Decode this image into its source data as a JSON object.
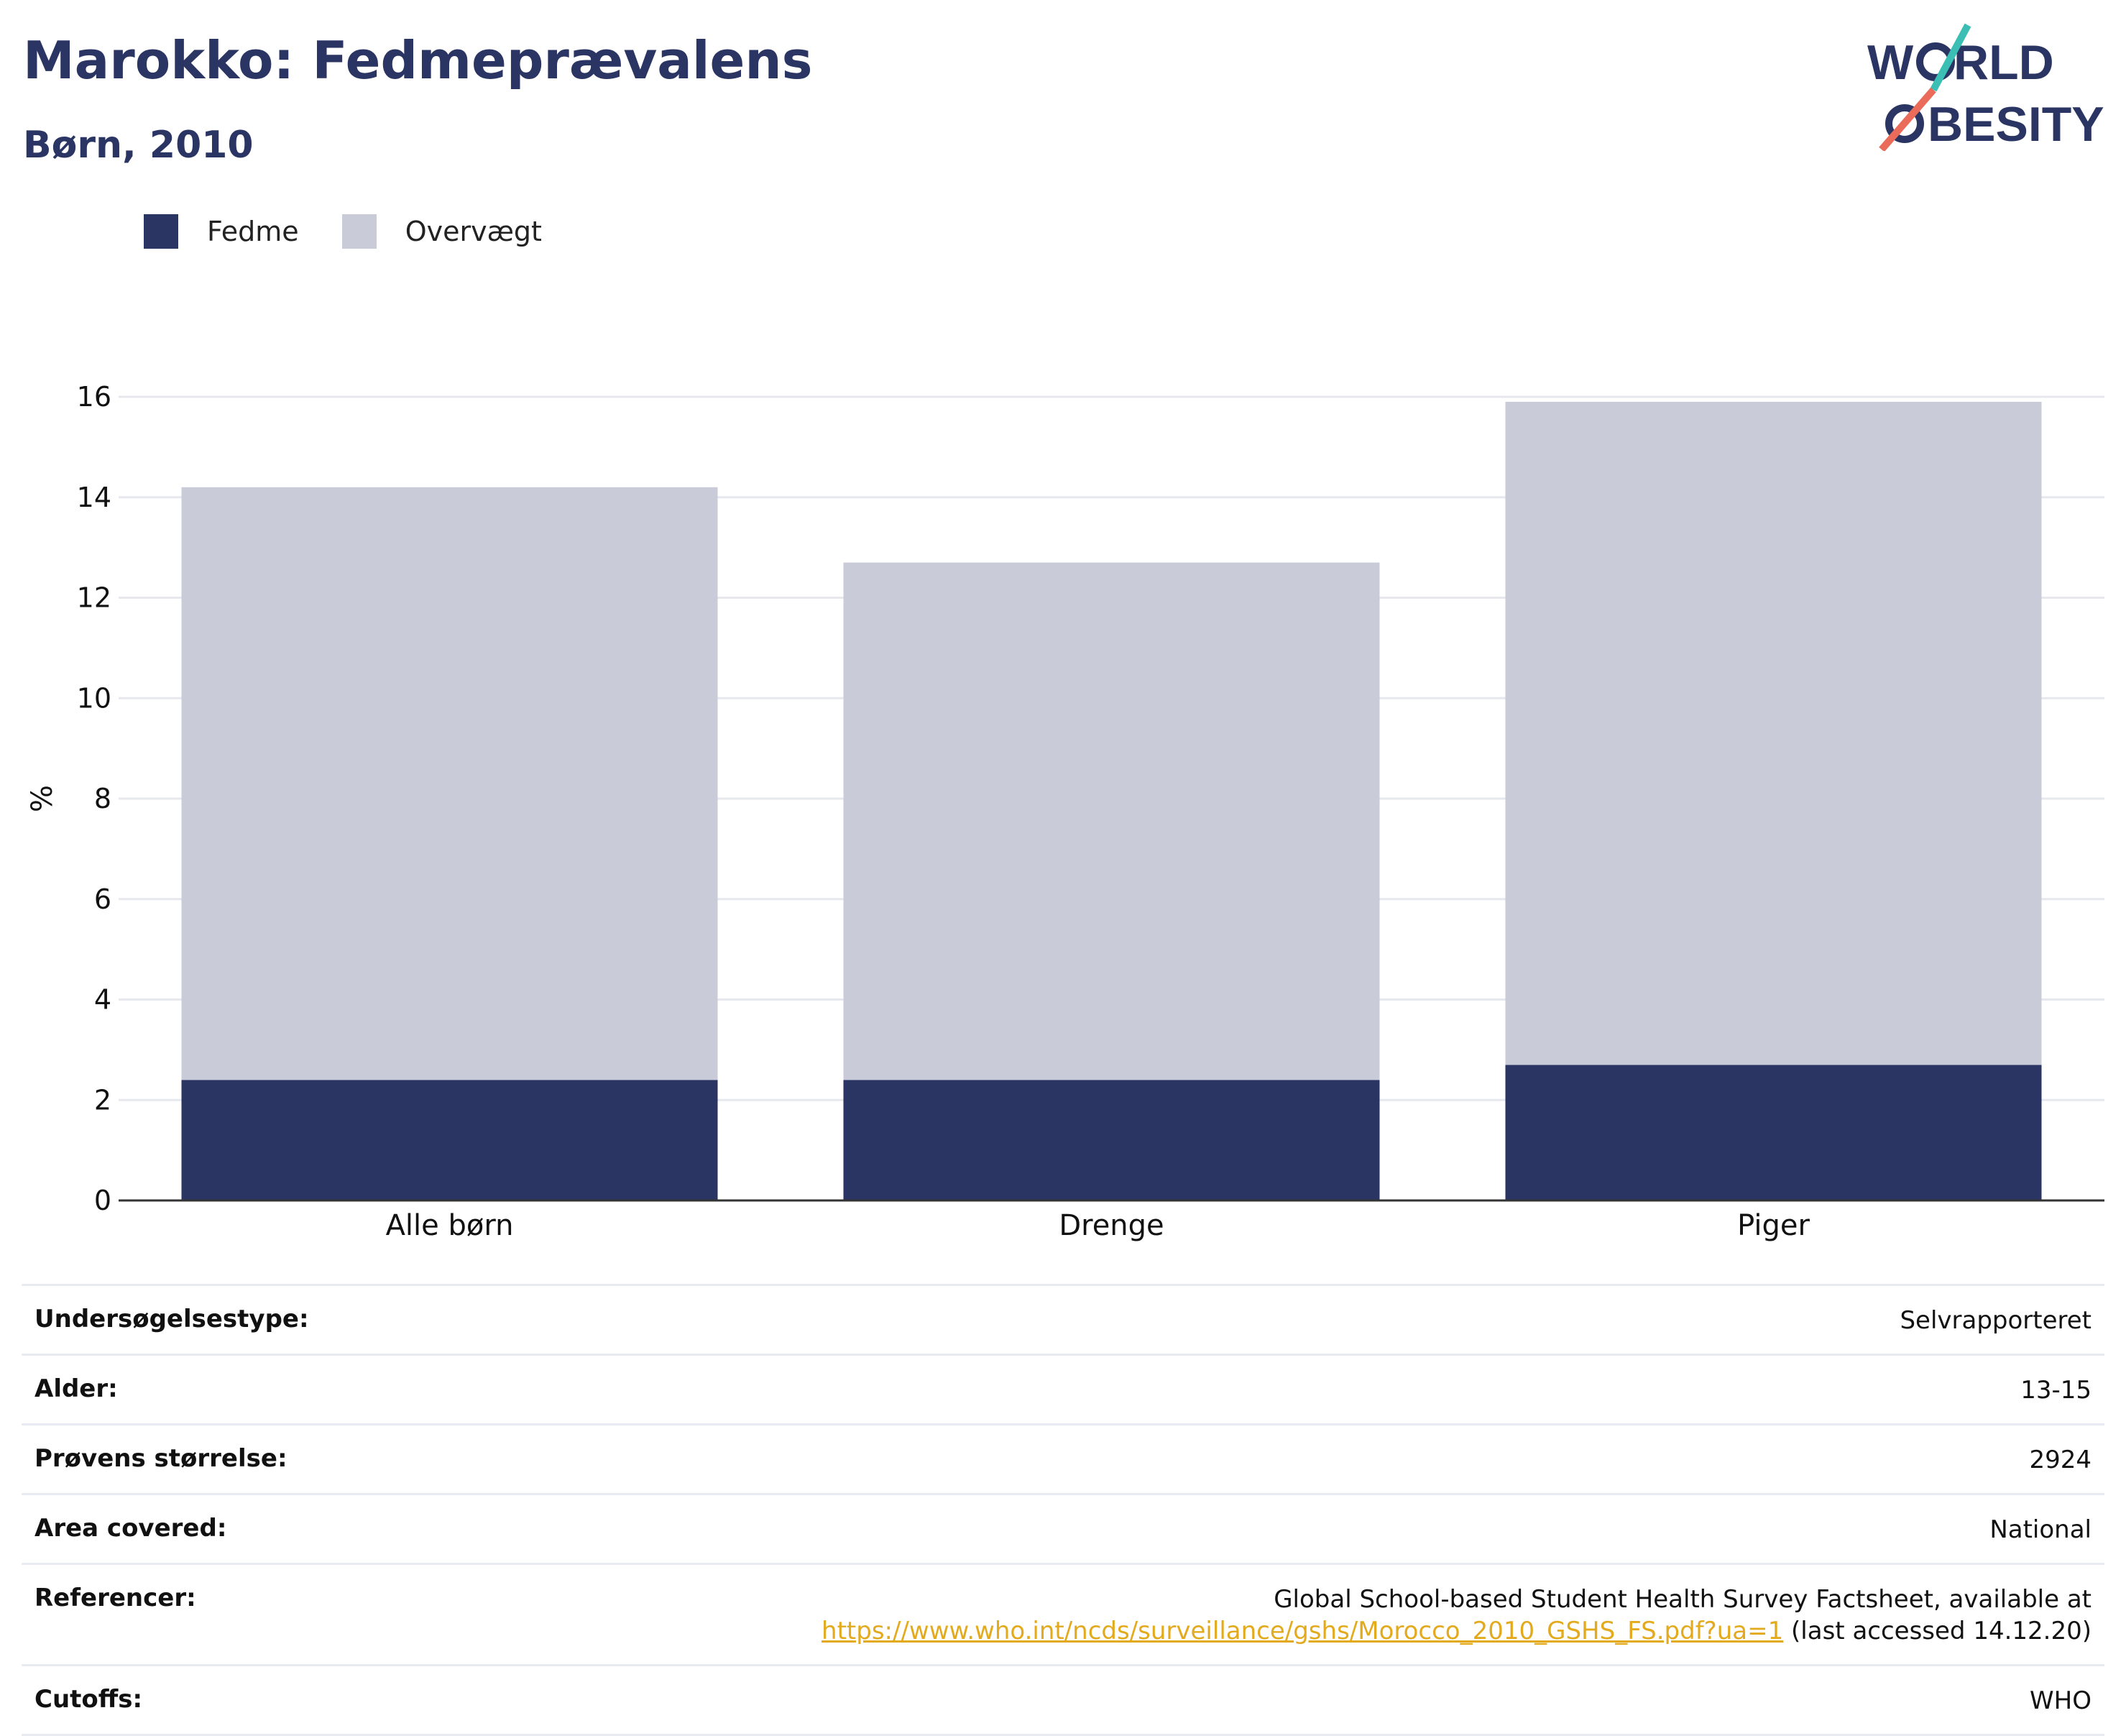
{
  "header": {
    "title": "Marokko: Fedmeprævalens",
    "subtitle": "Børn, 2010"
  },
  "logo": {
    "line1": "W RLD",
    "line2": "BESITY",
    "colors": {
      "navy": "#2b3564",
      "teal": "#3bbfb5",
      "coral": "#ea6b5a"
    }
  },
  "legend": {
    "items": [
      {
        "label": "Fedme",
        "color": "#2b3564"
      },
      {
        "label": "Overvægt",
        "color": "#c9ccd8"
      }
    ]
  },
  "chart_data": {
    "type": "bar",
    "stacked": true,
    "categories": [
      "Alle børn",
      "Drenge",
      "Piger"
    ],
    "series": [
      {
        "name": "Fedme",
        "values": [
          2.4,
          2.4,
          2.7
        ],
        "color": "#2b3564"
      },
      {
        "name": "Overvægt",
        "values": [
          11.8,
          10.3,
          13.2
        ],
        "color": "#c9ccd8"
      }
    ],
    "ylabel": "%",
    "xlabel": "",
    "ylim": [
      0,
      16
    ],
    "yticks": [
      0,
      2,
      4,
      6,
      8,
      10,
      12,
      14,
      16
    ],
    "grid": true,
    "legend_position": "top-left"
  },
  "info": {
    "rows": [
      {
        "label": "Undersøgelsestype:",
        "value": "Selvrapporteret"
      },
      {
        "label": "Alder:",
        "value": "13-15"
      },
      {
        "label": "Prøvens størrelse:",
        "value": "2924"
      },
      {
        "label": "Area covered:",
        "value": "National"
      },
      {
        "label": "Cutoffs:",
        "value": "WHO"
      }
    ],
    "references": {
      "label": "Referencer:",
      "text": "Global School-based Student Health Survey Factsheet, available at",
      "link": "https://www.who.int/ncds/surveillance/gshs/Morocco_2010_GSHS_FS.pdf?ua=1",
      "suffix": " (last accessed 14.12.20)"
    }
  }
}
